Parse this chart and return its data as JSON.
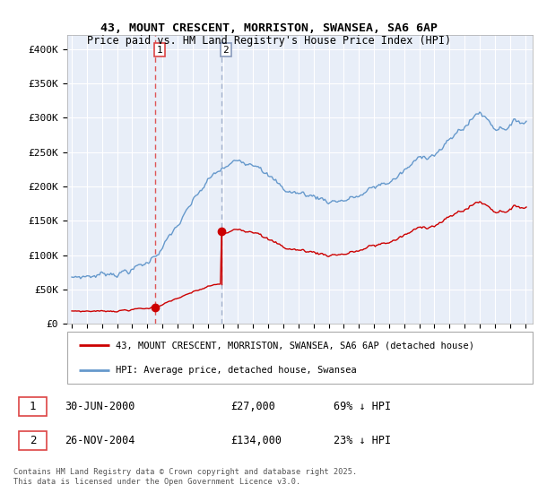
{
  "title": "43, MOUNT CRESCENT, MORRISTON, SWANSEA, SA6 6AP",
  "subtitle": "Price paid vs. HM Land Registry's House Price Index (HPI)",
  "ylim": [
    0,
    420000
  ],
  "yticks": [
    0,
    50000,
    100000,
    150000,
    200000,
    250000,
    300000,
    350000,
    400000
  ],
  "ytick_labels": [
    "£0",
    "£50K",
    "£100K",
    "£150K",
    "£200K",
    "£250K",
    "£300K",
    "£350K",
    "£400K"
  ],
  "transaction1_year": 2000.5,
  "transaction1_price": 27000,
  "transaction2_year": 2004.9,
  "transaction2_price": 134000,
  "transaction1_label": "30-JUN-2000",
  "transaction1_amount": "£27,000",
  "transaction1_hpi": "69% ↓ HPI",
  "transaction2_label": "26-NOV-2004",
  "transaction2_amount": "£134,000",
  "transaction2_hpi": "23% ↓ HPI",
  "legend_property": "43, MOUNT CRESCENT, MORRISTON, SWANSEA, SA6 6AP (detached house)",
  "legend_hpi": "HPI: Average price, detached house, Swansea",
  "footnote1": "Contains HM Land Registry data © Crown copyright and database right 2025.",
  "footnote2": "This data is licensed under the Open Government Licence v3.0.",
  "property_line_color": "#cc0000",
  "hpi_line_color": "#6699cc",
  "vline1_color": "#dd4444",
  "vline2_color": "#8899bb",
  "chart_bg_color": "#e8eef8",
  "background_color": "#ffffff",
  "grid_color": "#ffffff"
}
